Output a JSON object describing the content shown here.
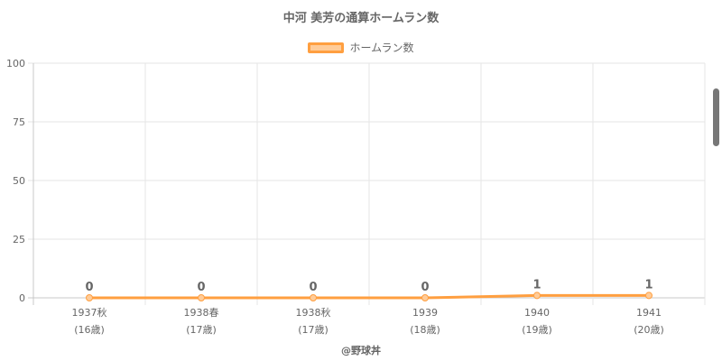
{
  "chart_data": {
    "type": "line",
    "title": "中河 美芳の通算ホームラン数",
    "categories": [
      "1937秋",
      "1938春",
      "1938秋",
      "1939",
      "1940",
      "1941"
    ],
    "ages": [
      "(16歳)",
      "(17歳)",
      "(17歳)",
      "(18歳)",
      "(19歳)",
      "(20歳)"
    ],
    "series": [
      {
        "name": "ホームラン数",
        "values": [
          0,
          0,
          0,
          0,
          1,
          1
        ]
      }
    ],
    "ylim": [
      0,
      100
    ],
    "yticks": [
      0,
      25,
      50,
      75,
      100
    ],
    "data_labels": [
      "0",
      "0",
      "0",
      "0",
      "1",
      "1"
    ],
    "legend": "top",
    "grid": true,
    "colors": {
      "line": "#ff9f40",
      "fill": "#ffcc99",
      "grid": "#e6e6e6",
      "text": "#666666"
    }
  },
  "footer": {
    "credit": "@野球丼"
  }
}
